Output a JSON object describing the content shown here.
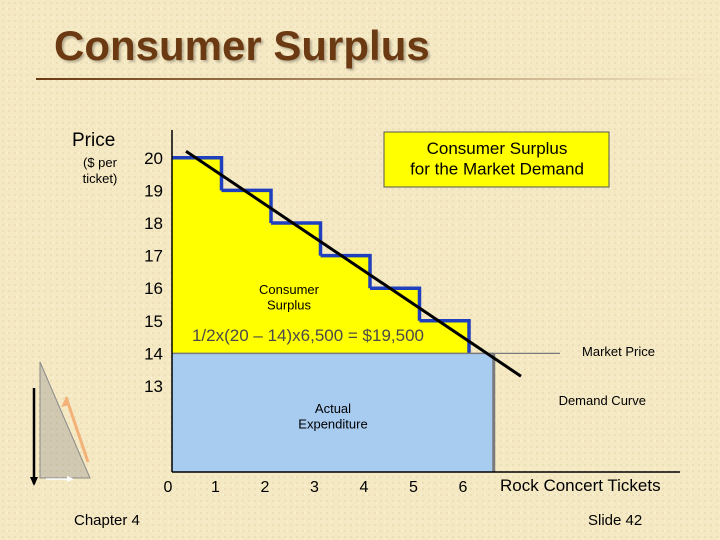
{
  "slide": {
    "title": "Consumer Surplus",
    "footer_left": "Chapter 4",
    "footer_right": "Slide 42"
  },
  "chart_data": {
    "type": "area",
    "ylabel": "Price",
    "ylabel_sub": "($ per ticket)",
    "xlabel": "Rock Concert Tickets",
    "x_ticks": [
      0,
      1,
      2,
      3,
      4,
      5,
      6
    ],
    "y_ticks": [
      13,
      14,
      15,
      16,
      17,
      18,
      19,
      20
    ],
    "demand_steps": [
      {
        "x_from": 0,
        "x_to": 1,
        "price": 20
      },
      {
        "x_from": 1,
        "x_to": 2,
        "price": 19
      },
      {
        "x_from": 2,
        "x_to": 3,
        "price": 18
      },
      {
        "x_from": 3,
        "x_to": 4,
        "price": 17
      },
      {
        "x_from": 4,
        "x_to": 5,
        "price": 16
      },
      {
        "x_from": 5,
        "x_to": 6,
        "price": 15
      }
    ],
    "demand_curve": [
      {
        "x": 0,
        "y": 20.2
      },
      {
        "x": 7.05,
        "y": 13.3
      }
    ],
    "market_price": 14,
    "quantity": 6.5,
    "annotations": {
      "box_text": "Consumer Surplus\nfor the Market Demand",
      "surplus_label": "Consumer\nSurplus",
      "formula": "1/2x(20 – 14)x6,500 = $19,500",
      "market_price_label": "Market Price",
      "demand_curve_label": "Demand Curve",
      "expenditure_label": "Actual\nExpenditure"
    },
    "colors": {
      "surplus": "#ffff00",
      "expenditure": "#a8cbf0",
      "steps": "#1f3fbf",
      "demand": "#000000",
      "formula_text": "#4a4a4a",
      "axis_tick_axis": "#000000"
    }
  }
}
